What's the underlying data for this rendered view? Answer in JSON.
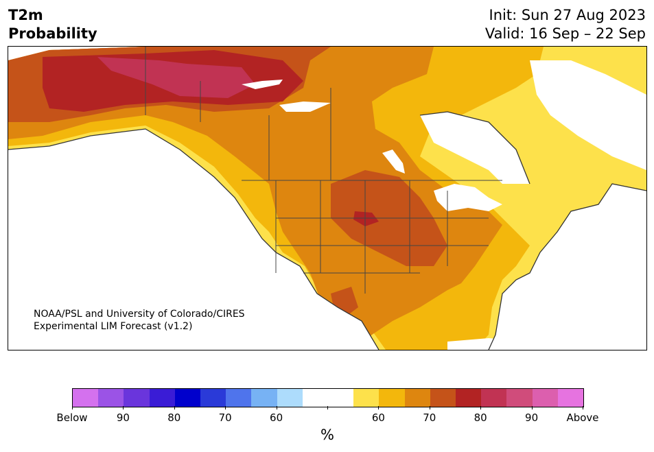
{
  "header": {
    "title_line1": "T2m",
    "title_line2": "Probability",
    "init_text": "Init: Sun 27 Aug 2023",
    "valid_text": "Valid: 16 Sep – 22 Sep"
  },
  "credit": {
    "line1": "NOAA/PSL and University of Colorado/CIRES",
    "line2": "Experimental LIM Forecast (v1.2)"
  },
  "colorbar": {
    "unit": "%",
    "colors": [
      "#d471ee",
      "#9b53e6",
      "#6a35dc",
      "#3a1cd6",
      "#0000cc",
      "#2a3ad8",
      "#4f74ec",
      "#77b2f4",
      "#addcfc",
      "#ffffff",
      "#ffffff",
      "#fde14b",
      "#f3b70c",
      "#de860f",
      "#c55319",
      "#b22323",
      "#c13353",
      "#d04c7b",
      "#dc5fae",
      "#e673e0"
    ],
    "tick_labels": [
      "Below",
      "90",
      "80",
      "70",
      "60",
      "",
      "60",
      "70",
      "80",
      "90",
      "Above"
    ]
  },
  "legend_colors": {
    "below_high": "#9b53e6",
    "above_60": "#fde14b",
    "above_70": "#de860f",
    "above_80": "#b22323",
    "above_90": "#d04c7b"
  }
}
